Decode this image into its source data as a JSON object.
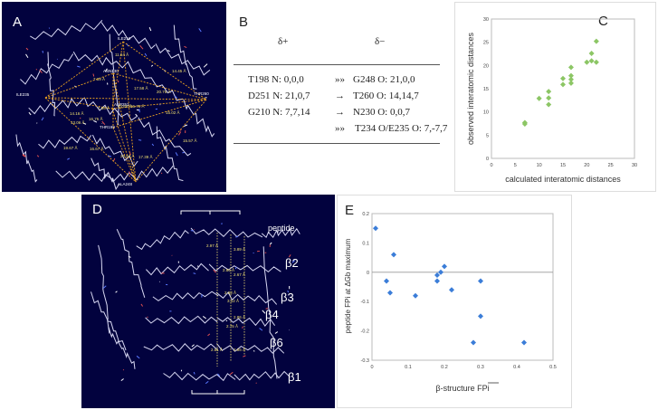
{
  "panels": {
    "A": {
      "label": "A",
      "residues": [
        "ILE210",
        "ASN230",
        "ILE235",
        "THR260",
        "ALA248",
        "ASP251",
        "THR198"
      ],
      "distances": [
        "11.64 Å",
        "14.45 Å",
        "7.39 Å",
        "17.58 Å",
        "20.76 Å",
        "14.16 Å",
        "7.66 Å",
        "23.66 Å",
        "26.79 Å",
        "13.06 Å",
        "16.75 Å",
        "15.02 Å",
        "16.67 Å",
        "19.67 Å",
        "15.57 Å",
        "26.94 Å",
        "17.39 Å"
      ]
    },
    "B": {
      "label": "B",
      "header_plus": "δ+",
      "header_minus": "δ−",
      "rows": [
        {
          "donor": "T198 N:  0,0,0",
          "arrow": "»»",
          "acceptor": "G248 O:  21,0,0"
        },
        {
          "donor": "D251 N:  21,0,7",
          "arrow": "→",
          "acceptor": "T260 O:  14,14,7"
        },
        {
          "donor": "G210 N:  7,7,14",
          "arrow": "→",
          "acceptor": "N230 O:  0,0,7"
        },
        {
          "donor": "",
          "arrow": "»»",
          "acceptor": "T234 O/E235 O: 7,-7,7"
        }
      ]
    },
    "C": {
      "label": "C"
    },
    "D": {
      "label": "D",
      "strand_labels": [
        "peptide",
        "β2",
        "β3",
        "β4",
        "β6",
        "β1"
      ],
      "distances": [
        "2.97 Å",
        "3.89 Å",
        "2.85 Å",
        "2.67 Å",
        "2.88 Å",
        "3.12 Å",
        "2.86 Å",
        "2.75 Å",
        "2.81 Å",
        "2.86 Å"
      ]
    },
    "E": {
      "label": "E"
    }
  },
  "chart_data": [
    {
      "type": "scatter",
      "panel": "C",
      "xlabel": "calculated interatomic distances",
      "ylabel": "observed interatomic distances",
      "xlim": [
        0,
        30
      ],
      "ylim": [
        0,
        30
      ],
      "xticks": [
        "0",
        "5",
        "10",
        "15",
        "20",
        "25",
        "30"
      ],
      "yticks": [
        "0",
        "5",
        "10",
        "15",
        "20",
        "25",
        "30"
      ],
      "color": "#8cc665",
      "points": [
        [
          7,
          7.7
        ],
        [
          7,
          7.4
        ],
        [
          10,
          12.9
        ],
        [
          12,
          11.6
        ],
        [
          12,
          13
        ],
        [
          12,
          14.4
        ],
        [
          15,
          15.9
        ],
        [
          15,
          17.2
        ],
        [
          16.7,
          16.2
        ],
        [
          16.7,
          17
        ],
        [
          16.7,
          17.8
        ],
        [
          16.7,
          19.6
        ],
        [
          20,
          20.7
        ],
        [
          21,
          21
        ],
        [
          21,
          22.6
        ],
        [
          22,
          20.7
        ],
        [
          22,
          25.2
        ]
      ]
    },
    {
      "type": "scatter",
      "panel": "E",
      "xlabel": "β-structure FPi",
      "ylabel": "peptide FPi at ΔGb maximum",
      "xlim": [
        0,
        0.5
      ],
      "ylim": [
        -0.3,
        0.2
      ],
      "xticks": [
        "0",
        "0.1",
        "0.2",
        "0.3",
        "0.4",
        "0.5"
      ],
      "yticks": [
        "-0.3",
        "-0.2",
        "-0.1",
        "0",
        "0.1",
        "0.2"
      ],
      "color": "#3b7dd8",
      "points": [
        [
          0.01,
          0.15
        ],
        [
          0.04,
          -0.03
        ],
        [
          0.05,
          -0.07
        ],
        [
          0.06,
          0.06
        ],
        [
          0.12,
          -0.08
        ],
        [
          0.18,
          -0.03
        ],
        [
          0.18,
          -0.01
        ],
        [
          0.19,
          0
        ],
        [
          0.2,
          0.02
        ],
        [
          0.22,
          -0.06
        ],
        [
          0.28,
          -0.24
        ],
        [
          0.3,
          -0.03
        ],
        [
          0.3,
          -0.15
        ],
        [
          0.42,
          -0.24
        ]
      ]
    }
  ]
}
